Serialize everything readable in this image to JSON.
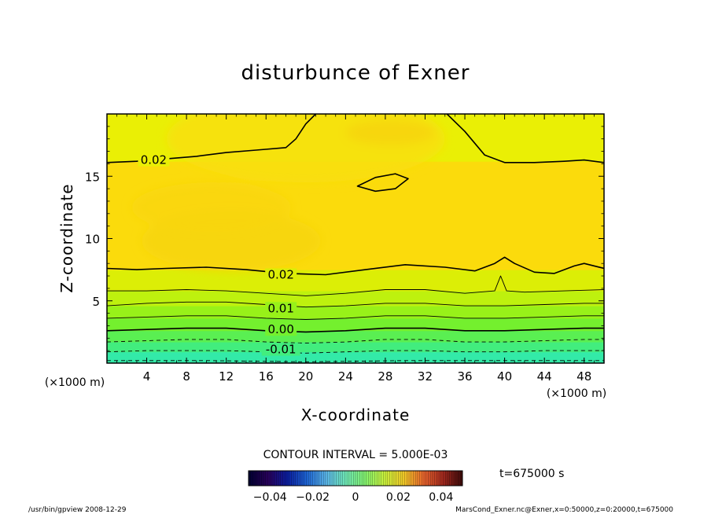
{
  "chart_data": {
    "type": "contour",
    "title": "disturbunce of Exner",
    "xlabel": "X-coordinate",
    "ylabel": "Z-coordinate",
    "x_unit": "(×1000 m)",
    "z_unit": "(×1000 m)",
    "xlim": [
      0,
      50
    ],
    "ylim": [
      0,
      20
    ],
    "x_ticks": [
      4,
      8,
      12,
      16,
      20,
      24,
      28,
      32,
      36,
      40,
      44,
      48
    ],
    "y_ticks": [
      5,
      10,
      15
    ],
    "contour_interval_text": "CONTOUR INTERVAL = 5.000E-03",
    "contour_interval": 0.005,
    "contour_labels": [
      {
        "text": "0.02",
        "x": 4.7,
        "z": 16.3
      },
      {
        "text": "0.02",
        "x": 17.5,
        "z": 7.1
      },
      {
        "text": "0.01",
        "x": 17.5,
        "z": 4.4
      },
      {
        "text": "0.00",
        "x": 17.5,
        "z": 2.7
      },
      {
        "text": "-0.01",
        "x": 17.5,
        "z": 1.1
      }
    ],
    "contours": [
      {
        "level": 0.02,
        "style": "solid",
        "points": [
          [
            0,
            16.1
          ],
          [
            3,
            16.2
          ],
          [
            6,
            16.4
          ],
          [
            9,
            16.6
          ],
          [
            12,
            16.9
          ],
          [
            15,
            17.1
          ],
          [
            18,
            17.3
          ],
          [
            19,
            18
          ],
          [
            20,
            19.2
          ],
          [
            21,
            20
          ]
        ]
      },
      {
        "level": 0.02,
        "style": "solid",
        "points": [
          [
            34.2,
            20
          ],
          [
            36,
            18.6
          ],
          [
            38,
            16.7
          ],
          [
            40,
            16.1
          ],
          [
            43,
            16.1
          ],
          [
            46,
            16.2
          ],
          [
            48,
            16.3
          ],
          [
            50,
            16.1
          ]
        ]
      },
      {
        "level": 0.025,
        "style": "solid",
        "closed": true,
        "points": [
          [
            25.2,
            14.2
          ],
          [
            27,
            14.9
          ],
          [
            29,
            15.2
          ],
          [
            30.3,
            14.8
          ],
          [
            29,
            14
          ],
          [
            27,
            13.8
          ],
          [
            25.2,
            14.2
          ]
        ]
      },
      {
        "level": 0.02,
        "style": "solid",
        "points": [
          [
            0,
            7.6
          ],
          [
            3,
            7.5
          ],
          [
            6,
            7.6
          ],
          [
            10,
            7.7
          ],
          [
            14,
            7.5
          ],
          [
            18,
            7.2
          ],
          [
            22,
            7.1
          ],
          [
            26,
            7.5
          ],
          [
            30,
            7.9
          ],
          [
            34,
            7.7
          ],
          [
            37,
            7.4
          ],
          [
            39,
            8
          ],
          [
            40,
            8.5
          ],
          [
            41,
            8
          ],
          [
            43,
            7.3
          ],
          [
            45,
            7.2
          ],
          [
            47,
            7.8
          ],
          [
            48,
            8
          ],
          [
            50,
            7.6
          ]
        ]
      },
      {
        "level": 0.015,
        "style": "solid",
        "points": [
          [
            0,
            5.8
          ],
          [
            4,
            5.8
          ],
          [
            8,
            5.9
          ],
          [
            12,
            5.8
          ],
          [
            16,
            5.6
          ],
          [
            20,
            5.4
          ],
          [
            24,
            5.6
          ],
          [
            28,
            5.9
          ],
          [
            32,
            5.9
          ],
          [
            36,
            5.6
          ],
          [
            39,
            5.8
          ],
          [
            39.6,
            7
          ],
          [
            40.2,
            5.8
          ],
          [
            42,
            5.7
          ],
          [
            46,
            5.8
          ],
          [
            50,
            5.9
          ]
        ]
      },
      {
        "level": 0.01,
        "style": "solid",
        "points": [
          [
            0,
            4.6
          ],
          [
            4,
            4.8
          ],
          [
            8,
            4.9
          ],
          [
            12,
            4.9
          ],
          [
            16,
            4.7
          ],
          [
            20,
            4.5
          ],
          [
            24,
            4.6
          ],
          [
            28,
            4.8
          ],
          [
            32,
            4.8
          ],
          [
            36,
            4.6
          ],
          [
            40,
            4.6
          ],
          [
            44,
            4.7
          ],
          [
            48,
            4.8
          ],
          [
            50,
            4.8
          ]
        ]
      },
      {
        "level": 0.005,
        "style": "solid",
        "points": [
          [
            0,
            3.6
          ],
          [
            4,
            3.7
          ],
          [
            8,
            3.8
          ],
          [
            12,
            3.8
          ],
          [
            16,
            3.6
          ],
          [
            20,
            3.5
          ],
          [
            24,
            3.6
          ],
          [
            28,
            3.8
          ],
          [
            32,
            3.8
          ],
          [
            36,
            3.6
          ],
          [
            40,
            3.6
          ],
          [
            44,
            3.7
          ],
          [
            48,
            3.8
          ],
          [
            50,
            3.8
          ]
        ]
      },
      {
        "level": 0.0,
        "style": "solid",
        "points": [
          [
            0,
            2.6
          ],
          [
            4,
            2.7
          ],
          [
            8,
            2.8
          ],
          [
            12,
            2.8
          ],
          [
            16,
            2.6
          ],
          [
            20,
            2.5
          ],
          [
            24,
            2.6
          ],
          [
            28,
            2.8
          ],
          [
            32,
            2.8
          ],
          [
            36,
            2.6
          ],
          [
            40,
            2.6
          ],
          [
            44,
            2.7
          ],
          [
            48,
            2.8
          ],
          [
            50,
            2.8
          ]
        ]
      },
      {
        "level": -0.005,
        "style": "dashed",
        "points": [
          [
            0,
            1.7
          ],
          [
            4,
            1.8
          ],
          [
            8,
            1.9
          ],
          [
            12,
            1.9
          ],
          [
            16,
            1.7
          ],
          [
            20,
            1.6
          ],
          [
            24,
            1.7
          ],
          [
            28,
            1.9
          ],
          [
            32,
            1.9
          ],
          [
            36,
            1.7
          ],
          [
            40,
            1.7
          ],
          [
            44,
            1.8
          ],
          [
            48,
            1.9
          ],
          [
            50,
            1.9
          ]
        ]
      },
      {
        "level": -0.01,
        "style": "dashed",
        "points": [
          [
            0,
            0.9
          ],
          [
            4,
            1.0
          ],
          [
            8,
            1.0
          ],
          [
            12,
            1.0
          ],
          [
            16,
            0.9
          ],
          [
            20,
            0.8
          ],
          [
            24,
            0.9
          ],
          [
            28,
            1.0
          ],
          [
            32,
            1.0
          ],
          [
            36,
            0.9
          ],
          [
            40,
            0.9
          ],
          [
            44,
            1.0
          ],
          [
            48,
            1.0
          ],
          [
            50,
            1.0
          ]
        ]
      },
      {
        "level": -0.015,
        "style": "dashed",
        "points": [
          [
            0,
            0.2
          ],
          [
            10,
            0.2
          ],
          [
            20,
            0.1
          ],
          [
            30,
            0.2
          ],
          [
            40,
            0.2
          ],
          [
            50,
            0.2
          ]
        ]
      }
    ],
    "fill_bands": [
      {
        "z_bottom": 0.0,
        "z_top": 0.9,
        "color": "#33eaa8"
      },
      {
        "z_bottom": 0.9,
        "z_top": 1.7,
        "color": "#42ed7e"
      },
      {
        "z_bottom": 1.7,
        "z_top": 2.6,
        "color": "#5aef52"
      },
      {
        "z_bottom": 2.6,
        "z_top": 3.6,
        "color": "#74f02e"
      },
      {
        "z_bottom": 3.6,
        "z_top": 4.6,
        "color": "#98f119"
      },
      {
        "z_bottom": 4.6,
        "z_top": 5.8,
        "color": "#bef10e"
      },
      {
        "z_bottom": 5.8,
        "z_top": 7.5,
        "color": "#dcee06"
      },
      {
        "z_bottom": 7.5,
        "z_top": 16.2,
        "color": "#fbdb0c"
      },
      {
        "z_bottom": 16.2,
        "z_top": 20.0,
        "color": "#eaef05"
      }
    ],
    "high_patches": [
      {
        "x": 20.0,
        "z": 18.0,
        "rx": 14.0,
        "rz": 3.5,
        "color": "#f8df0a"
      },
      {
        "x": 12.5,
        "z": 9.8,
        "rx": 9.0,
        "rz": 2.4,
        "color": "#f7d50f"
      },
      {
        "x": 28.5,
        "z": 18.5,
        "rx": 4.5,
        "rz": 1.0,
        "color": "#f7d60e"
      },
      {
        "x": 10.5,
        "z": 12.5,
        "rx": 8.0,
        "rz": 2.0,
        "color": "#f9d60e"
      }
    ],
    "colorbar": {
      "tick_labels": [
        "−0.04",
        "−0.02",
        "0",
        "0.02",
        "0.04"
      ],
      "tick_values": [
        -0.04,
        -0.02,
        0.0,
        0.02,
        0.04
      ],
      "range": [
        -0.05,
        0.05
      ],
      "stops": [
        "#000030",
        "#28005a",
        "#0a1e9e",
        "#1e64d2",
        "#5ab4e6",
        "#6ee6b4",
        "#82f06e",
        "#c8f03c",
        "#f0c828",
        "#e6642d",
        "#a0281e",
        "#3c0a0a"
      ]
    }
  },
  "annotations": {
    "time": "t=675000 s",
    "footer_left": "/usr/bin/gpview   2008-12-29",
    "footer_right": "MarsCond_Exner.nc@Exner,x=0:50000,z=0:20000,t=675000"
  }
}
